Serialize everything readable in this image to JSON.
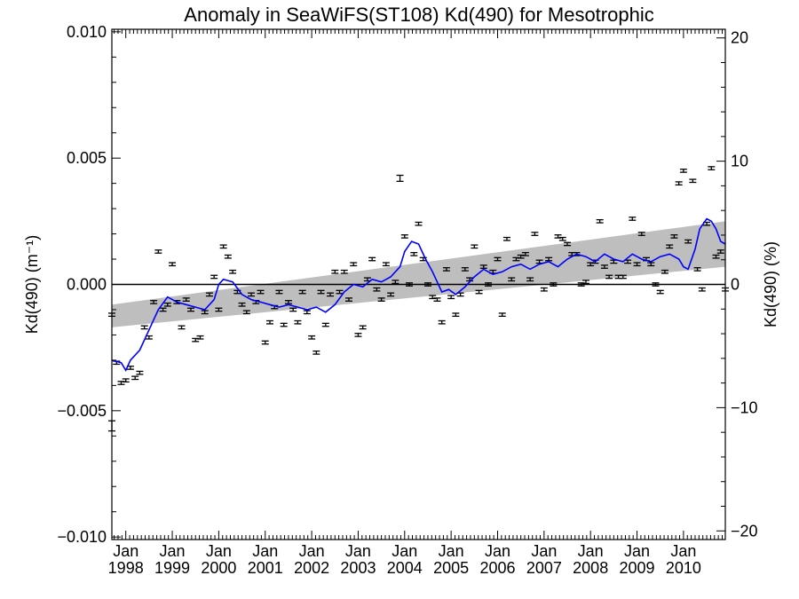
{
  "chart_data": {
    "type": "scatter",
    "title": "Anomaly in SeaWiFS(ST108) Kd(490) for Mesotrophic",
    "ylabel": "Kd(490) (m⁻¹)",
    "y2label": "Kd(490) (%)",
    "xlim": [
      1997.7,
      2010.9
    ],
    "ylim": [
      -0.0101,
      0.0101
    ],
    "y2lim": [
      -20.7,
      20.7
    ],
    "yticks": [
      -0.01,
      -0.005,
      0.0,
      0.005,
      0.01
    ],
    "ytick_labels": [
      "−0.010",
      "−0.005",
      "0.000",
      "0.005",
      "0.010"
    ],
    "y2ticks": [
      -20,
      -10,
      0,
      10,
      20
    ],
    "y2tick_labels": [
      "−20",
      "−10",
      "0",
      "10",
      "20"
    ],
    "xticks": [
      1998,
      1999,
      2000,
      2001,
      2002,
      2003,
      2004,
      2005,
      2006,
      2007,
      2008,
      2009,
      2010
    ],
    "xtick_labels": [
      [
        "Jan",
        "1998"
      ],
      [
        "Jan",
        "1999"
      ],
      [
        "Jan",
        "2000"
      ],
      [
        "Jan",
        "2001"
      ],
      [
        "Jan",
        "2002"
      ],
      [
        "Jan",
        "2003"
      ],
      [
        "Jan",
        "2004"
      ],
      [
        "Jan",
        "2005"
      ],
      [
        "Jan",
        "2006"
      ],
      [
        "Jan",
        "2007"
      ],
      [
        "Jan",
        "2008"
      ],
      [
        "Jan",
        "2009"
      ],
      [
        "Jan",
        "2010"
      ]
    ],
    "grid": false,
    "colors": {
      "points": "#000000",
      "smoothed": "#0000ff",
      "band": "#bebebe",
      "zero_line": "#000000"
    },
    "trend_band": {
      "x": [
        1997.7,
        2010.9
      ],
      "lower": [
        -0.0017,
        0.0007
      ],
      "upper": [
        -0.0008,
        0.0025
      ]
    },
    "points": {
      "x": [
        1997.7,
        1997.8,
        1997.9,
        1998.0,
        1998.1,
        1998.2,
        1998.3,
        1998.4,
        1998.5,
        1998.6,
        1998.7,
        1998.8,
        1998.9,
        1999.0,
        1999.1,
        1999.2,
        1999.3,
        1999.4,
        1999.5,
        1999.6,
        1999.7,
        1999.8,
        1999.9,
        2000.0,
        2000.1,
        2000.2,
        2000.3,
        2000.4,
        2000.5,
        2000.6,
        2000.7,
        2000.8,
        2000.9,
        2001.0,
        2001.1,
        2001.2,
        2001.3,
        2001.4,
        2001.5,
        2001.6,
        2001.7,
        2001.8,
        2001.9,
        2002.0,
        2002.1,
        2002.2,
        2002.3,
        2002.4,
        2002.5,
        2002.6,
        2002.7,
        2002.8,
        2002.9,
        2003.0,
        2003.1,
        2003.2,
        2003.3,
        2003.4,
        2003.5,
        2003.6,
        2003.7,
        2003.8,
        2003.9,
        2004.0,
        2004.1,
        2004.2,
        2004.3,
        2004.4,
        2004.5,
        2004.6,
        2004.7,
        2004.8,
        2004.9,
        2005.0,
        2005.1,
        2005.2,
        2005.3,
        2005.4,
        2005.5,
        2005.6,
        2005.7,
        2005.8,
        2005.9,
        2006.0,
        2006.1,
        2006.2,
        2006.3,
        2006.4,
        2006.5,
        2006.6,
        2006.7,
        2006.8,
        2006.9,
        2007.0,
        2007.1,
        2007.2,
        2007.3,
        2007.4,
        2007.5,
        2007.6,
        2007.7,
        2007.8,
        2007.9,
        2008.0,
        2008.1,
        2008.2,
        2008.3,
        2008.4,
        2008.5,
        2008.6,
        2008.7,
        2008.8,
        2008.9,
        2009.0,
        2009.1,
        2009.2,
        2009.3,
        2009.4,
        2009.5,
        2009.6,
        2009.7,
        2009.8,
        2009.9,
        2010.0,
        2010.1,
        2010.2,
        2010.3,
        2010.4,
        2010.5,
        2010.6,
        2010.7,
        2010.8,
        2010.9
      ],
      "y": [
        -0.0012,
        -0.0031,
        -0.0039,
        -0.0038,
        -0.0033,
        -0.0037,
        -0.0035,
        -0.0017,
        -0.0021,
        -0.0007,
        0.0013,
        -0.001,
        -0.0008,
        0.0008,
        -0.0007,
        -0.0017,
        -0.0006,
        -0.001,
        -0.0022,
        -0.0021,
        -0.0011,
        -0.0004,
        0.0003,
        -0.001,
        0.0015,
        0.0011,
        0.0005,
        -0.0003,
        -0.0008,
        -0.0011,
        -0.0004,
        -0.0007,
        -0.0003,
        -0.0023,
        -0.0015,
        -0.0009,
        -0.0003,
        -0.0016,
        -0.0007,
        -0.001,
        -0.0015,
        -0.0003,
        -0.0011,
        -0.0021,
        -0.0027,
        -0.0003,
        -0.0016,
        -0.0004,
        0.0005,
        -0.0003,
        0.0005,
        -0.0006,
        0.0008,
        -0.002,
        -0.0017,
        0.0002,
        0.001,
        -0.0002,
        -0.0006,
        0.0008,
        -0.0004,
        0.0001,
        0.0042,
        0.0019,
        0.0,
        0.0012,
        0.0024,
        0.001,
        0.0,
        -0.0005,
        -0.0006,
        -0.0015,
        0.0006,
        -0.0005,
        -0.0012,
        -0.0004,
        0.0006,
        0.0002,
        0.0015,
        -0.0003,
        0.0007,
        0.0,
        0.0005,
        0.001,
        -0.0012,
        0.0018,
        0.0002,
        0.001,
        0.0011,
        0.0012,
        0.0002,
        0.002,
        0.0009,
        -0.0002,
        0.001,
        0.0,
        0.0019,
        0.0018,
        0.0016,
        0.0012,
        0.0012,
        0.0,
        0.0001,
        0.0008,
        0.0009,
        0.0025,
        0.0007,
        0.0003,
        0.0009,
        0.0003,
        0.0003,
        0.0009,
        0.0026,
        0.0008,
        0.002,
        0.001,
        0.0008,
        0.0,
        -0.0003,
        0.0005,
        0.0015,
        0.0019,
        0.004,
        0.0045,
        0.0017,
        0.0041,
        0.0006,
        -0.0002,
        0.0024,
        0.0046,
        0.0011,
        0.0013,
        -0.0002
      ],
      "err": [
        6e-05,
        6e-05,
        6e-05,
        6e-05,
        6e-05,
        6e-05,
        6e-05,
        6e-05,
        6e-05,
        6e-05,
        6e-05,
        6e-05,
        6e-05,
        6e-05,
        6e-05,
        6e-05,
        6e-05,
        6e-05,
        6e-05,
        6e-05,
        6e-05,
        6e-05,
        6e-05,
        6e-05,
        6e-05,
        6e-05,
        6e-05,
        6e-05,
        6e-05,
        6e-05,
        6e-05,
        6e-05,
        6e-05,
        6e-05,
        6e-05,
        6e-05,
        6e-05,
        6e-05,
        6e-05,
        6e-05,
        6e-05,
        6e-05,
        6e-05,
        6e-05,
        6e-05,
        6e-05,
        6e-05,
        6e-05,
        6e-05,
        6e-05,
        6e-05,
        6e-05,
        6e-05,
        6e-05,
        6e-05,
        6e-05,
        6e-05,
        6e-05,
        6e-05,
        6e-05,
        6e-05,
        6e-05,
        0.00012,
        6e-05,
        6e-05,
        6e-05,
        6e-05,
        6e-05,
        6e-05,
        6e-05,
        6e-05,
        6e-05,
        6e-05,
        6e-05,
        6e-05,
        6e-05,
        6e-05,
        6e-05,
        6e-05,
        6e-05,
        6e-05,
        6e-05,
        6e-05,
        6e-05,
        6e-05,
        6e-05,
        6e-05,
        6e-05,
        6e-05,
        6e-05,
        6e-05,
        6e-05,
        6e-05,
        6e-05,
        6e-05,
        6e-05,
        6e-05,
        6e-05,
        6e-05,
        6e-05,
        6e-05,
        6e-05,
        6e-05,
        6e-05,
        6e-05,
        6e-05,
        6e-05,
        6e-05,
        6e-05,
        6e-05,
        6e-05,
        6e-05,
        6e-05,
        6e-05,
        6e-05,
        6e-05,
        6e-05,
        6e-05,
        6e-05,
        6e-05,
        6e-05,
        6e-05,
        6e-05,
        6e-05,
        6e-05,
        6e-05,
        6e-05,
        6e-05,
        6e-05,
        6e-05,
        6e-05,
        6e-05,
        6e-05
      ]
    },
    "outliers": {
      "x": [
        1997.7
      ],
      "y": [
        -0.0056
      ],
      "err": [
        0.0002
      ]
    },
    "smoothed": {
      "x": [
        1997.7,
        1997.9,
        1998.0,
        1998.1,
        1998.3,
        1998.5,
        1998.7,
        1998.9,
        1999.1,
        1999.3,
        1999.5,
        1999.7,
        1999.9,
        2000.0,
        2000.1,
        2000.3,
        2000.5,
        2000.7,
        2000.9,
        2001.1,
        2001.3,
        2001.5,
        2001.7,
        2001.9,
        2002.1,
        2002.3,
        2002.5,
        2002.7,
        2002.9,
        2003.1,
        2003.3,
        2003.5,
        2003.7,
        2003.9,
        2004.0,
        2004.15,
        2004.3,
        2004.45,
        2004.6,
        2004.8,
        2004.95,
        2005.1,
        2005.3,
        2005.5,
        2005.7,
        2005.9,
        2006.1,
        2006.3,
        2006.5,
        2006.7,
        2006.9,
        2007.1,
        2007.3,
        2007.5,
        2007.7,
        2007.9,
        2008.1,
        2008.3,
        2008.5,
        2008.7,
        2008.9,
        2009.1,
        2009.3,
        2009.5,
        2009.7,
        2009.9,
        2010.0,
        2010.1,
        2010.25,
        2010.35,
        2010.5,
        2010.6,
        2010.7,
        2010.8,
        2010.9
      ],
      "y": [
        -0.003,
        -0.0031,
        -0.0034,
        -0.003,
        -0.0026,
        -0.0018,
        -0.001,
        -0.0005,
        -0.0007,
        -0.0008,
        -0.0009,
        -0.001,
        -0.0006,
        0.0,
        0.0002,
        0.0001,
        -0.0004,
        -0.0006,
        -0.0007,
        -0.0008,
        -0.0009,
        -0.0008,
        -0.0009,
        -0.001,
        -0.0009,
        -0.0011,
        -0.0008,
        -0.0003,
        0.0,
        -0.0001,
        0.0002,
        0.0001,
        0.0003,
        0.0007,
        0.0013,
        0.0017,
        0.0016,
        0.001,
        0.0005,
        -0.0003,
        -0.0002,
        -0.0004,
        -0.0001,
        0.0003,
        0.0006,
        0.0004,
        0.0005,
        0.0007,
        0.0008,
        0.0006,
        0.0008,
        0.0009,
        0.0007,
        0.001,
        0.0012,
        0.0011,
        0.0009,
        0.0012,
        0.001,
        0.0009,
        0.0012,
        0.001,
        0.0009,
        0.0011,
        0.0012,
        0.001,
        0.0007,
        0.0006,
        0.0014,
        0.0022,
        0.0026,
        0.0025,
        0.0022,
        0.0017,
        0.0016
      ]
    }
  }
}
